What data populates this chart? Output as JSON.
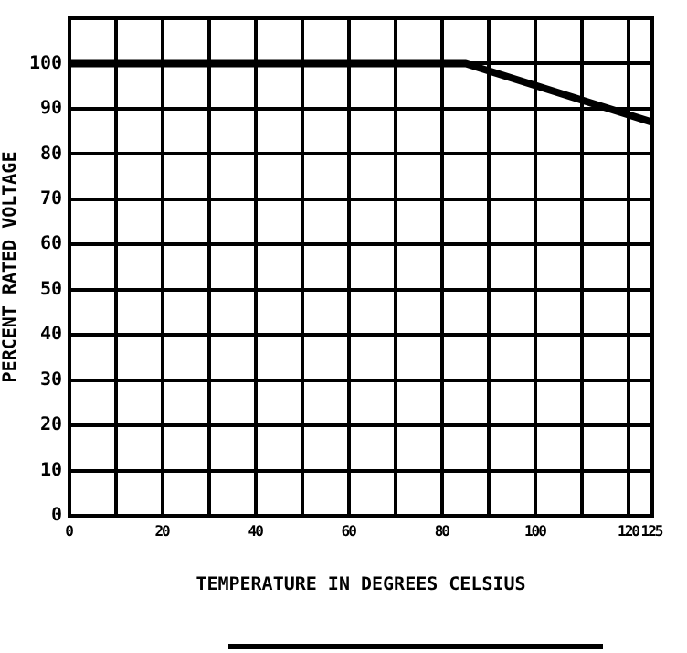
{
  "chart_data": {
    "type": "line",
    "xlabel": "TEMPERATURE IN DEGREES CELSIUS",
    "ylabel": "PERCENT RATED VOLTAGE",
    "x": [
      0,
      85,
      125
    ],
    "series": [
      {
        "color": "#000000",
        "values": [
          100,
          100,
          87
        ]
      }
    ],
    "xlim": [
      0,
      125
    ],
    "xticks": [
      0,
      {
        "value": 10,
        "label": null
      },
      20,
      {
        "value": 30,
        "label": null
      },
      40,
      {
        "value": 50,
        "label": null
      },
      60,
      {
        "value": 70,
        "label": null
      },
      80,
      {
        "value": 90,
        "label": null
      },
      100,
      {
        "value": 110,
        "label": null
      },
      120,
      125
    ],
    "ylim": [
      0,
      110
    ],
    "yticks": [
      0,
      10,
      20,
      30,
      40,
      50,
      60,
      70,
      80,
      90,
      100
    ],
    "grid": true,
    "legend": false,
    "marker": "none",
    "line_style": "solid"
  }
}
